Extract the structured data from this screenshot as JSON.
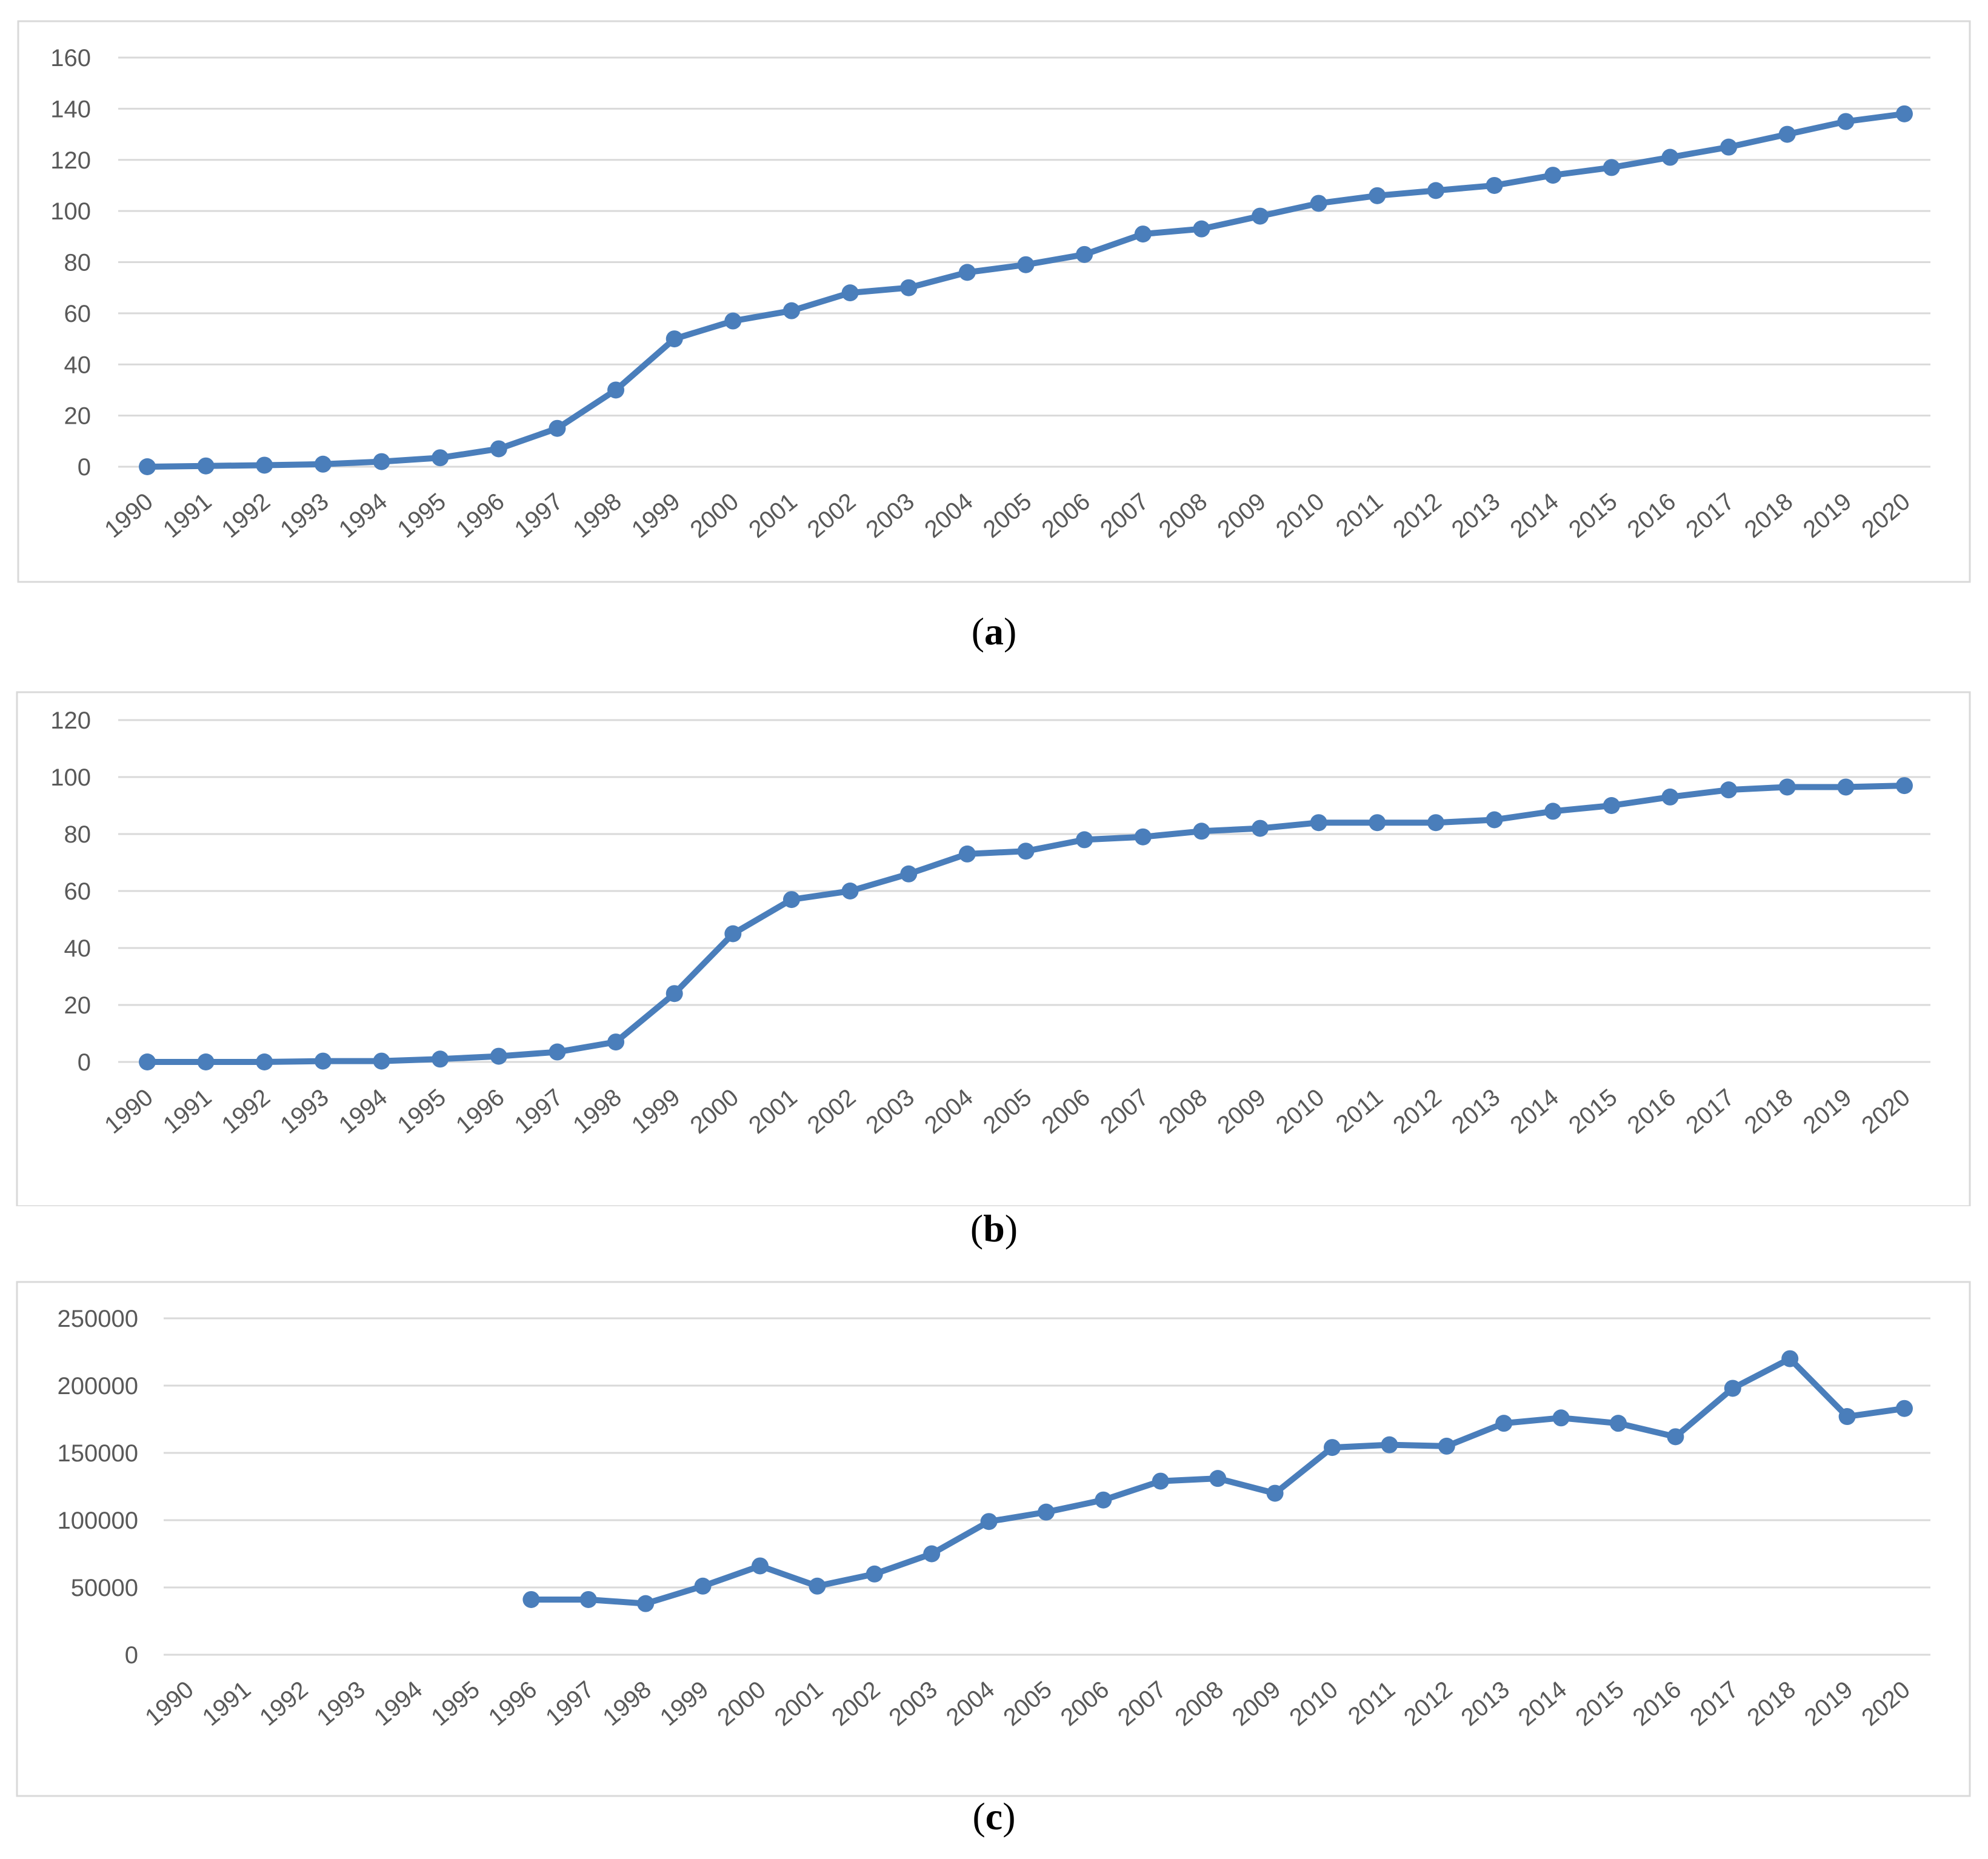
{
  "charts": [
    {
      "caption_letter": "a",
      "chart_data": {
        "type": "line",
        "title": "",
        "xlabel": "",
        "ylabel": "",
        "grid": true,
        "legend": "none",
        "ylim": [
          0,
          160
        ],
        "yticks": [
          0,
          20,
          40,
          60,
          80,
          100,
          120,
          140,
          160
        ],
        "color": "#4A7EBB",
        "categories": [
          "1990",
          "1991",
          "1992",
          "1993",
          "1994",
          "1995",
          "1996",
          "1997",
          "1998",
          "1999",
          "2000",
          "2001",
          "2002",
          "2003",
          "2004",
          "2005",
          "2006",
          "2007",
          "2008",
          "2009",
          "2010",
          "2011",
          "2012",
          "2013",
          "2014",
          "2015",
          "2016",
          "2017",
          "2018",
          "2019",
          "2020"
        ],
        "series": [
          {
            "values": [
              0,
              0.3,
              0.6,
              1,
              2,
              3.5,
              7,
              15,
              30,
              50,
              57,
              61,
              68,
              70,
              76,
              79,
              83,
              91,
              93,
              98,
              103,
              106,
              108,
              110,
              114,
              117,
              121,
              125,
              130,
              135,
              138
            ]
          }
        ]
      }
    },
    {
      "caption_letter": "b",
      "chart_data": {
        "type": "line",
        "title": "",
        "xlabel": "",
        "ylabel": "",
        "grid": true,
        "legend": "none",
        "ylim": [
          0,
          120
        ],
        "yticks": [
          0,
          20,
          40,
          60,
          80,
          100,
          120
        ],
        "color": "#4A7EBB",
        "categories": [
          "1990",
          "1991",
          "1992",
          "1993",
          "1994",
          "1995",
          "1996",
          "1997",
          "1998",
          "1999",
          "2000",
          "2001",
          "2002",
          "2003",
          "2004",
          "2005",
          "2006",
          "2007",
          "2008",
          "2009",
          "2010",
          "2011",
          "2012",
          "2013",
          "2014",
          "2015",
          "2016",
          "2017",
          "2018",
          "2019",
          "2020"
        ],
        "series": [
          {
            "values": [
              0,
              0,
              0,
              0.3,
              0.3,
              1,
              2,
              3.5,
              7,
              24,
              45,
              57,
              60,
              66,
              73,
              74,
              78,
              79,
              81,
              82,
              84,
              84,
              84,
              85,
              88,
              90,
              93,
              95.5,
              96.5,
              96.5,
              97
            ]
          }
        ]
      }
    },
    {
      "caption_letter": "c",
      "chart_data": {
        "type": "line",
        "title": "",
        "xlabel": "",
        "ylabel": "",
        "grid": true,
        "legend": "none",
        "ylim": [
          0,
          250000
        ],
        "yticks": [
          0,
          50000,
          100000,
          150000,
          200000,
          250000
        ],
        "color": "#4A7EBB",
        "categories": [
          "1990",
          "1991",
          "1992",
          "1993",
          "1994",
          "1995",
          "1996",
          "1997",
          "1998",
          "1999",
          "2000",
          "2001",
          "2002",
          "2003",
          "2004",
          "2005",
          "2006",
          "2007",
          "2008",
          "2009",
          "2010",
          "2011",
          "2012",
          "2013",
          "2014",
          "2015",
          "2016",
          "2017",
          "2018",
          "2019",
          "2020"
        ],
        "series": [
          {
            "values": [
              null,
              null,
              null,
              null,
              null,
              null,
              41000,
              41000,
              38000,
              51000,
              66000,
              51000,
              60000,
              75000,
              99000,
              106000,
              115000,
              129000,
              131000,
              120000,
              154000,
              156000,
              155000,
              172000,
              176000,
              172000,
              162000,
              198000,
              220000,
              177000,
              183000
            ]
          }
        ]
      }
    }
  ]
}
